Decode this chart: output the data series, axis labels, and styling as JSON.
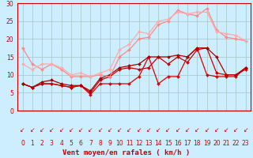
{
  "title": "",
  "xlabel": "Vent moyen/en rafales ( km/h )",
  "background_color": "#cceeff",
  "grid_color": "#aacccc",
  "x": [
    0,
    1,
    2,
    3,
    4,
    5,
    6,
    7,
    8,
    9,
    10,
    11,
    12,
    13,
    14,
    15,
    16,
    17,
    18,
    19,
    20,
    21,
    22,
    23
  ],
  "lines": [
    {
      "y": [
        7.5,
        6.5,
        7.5,
        7.5,
        7.0,
        6.5,
        7.0,
        4.5,
        7.5,
        7.5,
        7.5,
        7.5,
        9.5,
        15.0,
        7.5,
        9.5,
        9.5,
        15.0,
        17.5,
        10.0,
        9.5,
        9.5,
        9.5,
        12.0
      ],
      "color": "#dd0000",
      "lw": 0.9,
      "marker": "D",
      "ms": 2.0
    },
    {
      "y": [
        7.5,
        6.5,
        7.5,
        7.5,
        7.0,
        6.5,
        7.0,
        5.0,
        8.5,
        9.5,
        11.5,
        12.0,
        11.5,
        12.0,
        15.0,
        13.0,
        15.0,
        13.5,
        17.0,
        17.5,
        10.5,
        10.0,
        10.0,
        11.5
      ],
      "color": "#cc0000",
      "lw": 0.9,
      "marker": "D",
      "ms": 2.0
    },
    {
      "y": [
        7.5,
        6.5,
        8.0,
        8.5,
        7.5,
        7.0,
        7.0,
        5.5,
        9.0,
        10.0,
        12.0,
        12.5,
        13.0,
        15.0,
        15.0,
        15.0,
        15.5,
        15.0,
        17.5,
        17.5,
        15.0,
        10.0,
        10.0,
        12.0
      ],
      "color": "#aa0000",
      "lw": 0.9,
      "marker": "D",
      "ms": 2.0
    },
    {
      "y": [
        17.5,
        13.0,
        11.5,
        13.0,
        11.5,
        9.5,
        9.5,
        9.5,
        10.0,
        9.5,
        15.0,
        17.0,
        20.0,
        20.5,
        24.0,
        25.0,
        28.0,
        27.0,
        26.5,
        28.5,
        22.5,
        20.5,
        20.0,
        19.5
      ],
      "color": "#ff8888",
      "lw": 0.9,
      "marker": "D",
      "ms": 2.0
    },
    {
      "y": [
        13.0,
        11.5,
        13.0,
        13.0,
        12.0,
        10.0,
        10.5,
        9.5,
        10.5,
        11.5,
        17.0,
        18.5,
        22.0,
        21.5,
        25.0,
        25.5,
        27.5,
        27.0,
        27.5,
        27.5,
        22.0,
        21.5,
        21.0,
        19.5
      ],
      "color": "#ffaaaa",
      "lw": 0.9,
      "marker": "D",
      "ms": 2.0
    }
  ],
  "ylim": [
    0,
    30
  ],
  "xlim": [
    -0.5,
    23.5
  ],
  "yticks": [
    0,
    5,
    10,
    15,
    20,
    25,
    30
  ],
  "xticks": [
    0,
    1,
    2,
    3,
    4,
    5,
    6,
    7,
    8,
    9,
    10,
    11,
    12,
    13,
    14,
    15,
    16,
    17,
    18,
    19,
    20,
    21,
    22,
    23
  ],
  "tick_color": "#cc0000",
  "spine_color": "#cc0000",
  "xlabel_color": "#cc0000",
  "xlabel_fontsize": 6.5,
  "tick_fontsize": 5.5,
  "arrow_char": "↙"
}
